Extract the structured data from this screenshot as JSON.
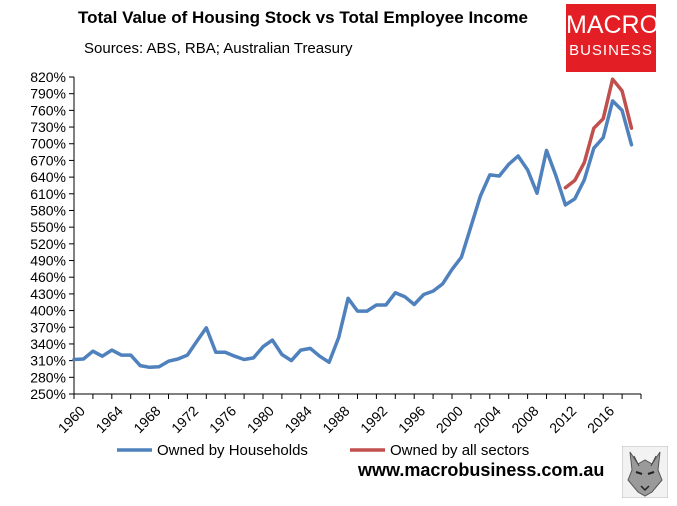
{
  "header": {
    "title": "Total Value of Housing Stock vs Total Employee Income",
    "subtitle": "Sources: ABS, RBA; Australian Treasury"
  },
  "logo": {
    "line1": "MACRO",
    "line2": "BUSINESS"
  },
  "footer": {
    "website": "www.macrobusiness.com.au"
  },
  "colors": {
    "households": "#4f81bd",
    "all_sectors": "#c0504d",
    "axis": "#000000",
    "grid": "#d9d9d9"
  },
  "chart_data": {
    "type": "line",
    "title": "Total Value of Housing Stock vs Total Employee Income",
    "subtitle": "Sources: ABS, RBA; Australian Treasury",
    "xlim": [
      1960,
      2020
    ],
    "ylim": [
      250,
      820
    ],
    "y_ticks": [
      "820%",
      "790%",
      "760%",
      "730%",
      "700%",
      "670%",
      "640%",
      "610%",
      "580%",
      "550%",
      "520%",
      "490%",
      "460%",
      "430%",
      "400%",
      "370%",
      "340%",
      "310%",
      "280%",
      "250%"
    ],
    "y_tick_values": [
      820,
      790,
      760,
      730,
      700,
      670,
      640,
      610,
      580,
      550,
      520,
      490,
      460,
      430,
      400,
      370,
      340,
      310,
      280,
      250
    ],
    "x_ticks": [
      "1960",
      "1964",
      "1968",
      "1972",
      "1976",
      "1980",
      "1984",
      "1988",
      "1992",
      "1996",
      "2000",
      "2004",
      "2008",
      "2012",
      "2016"
    ],
    "x_tick_values": [
      1960,
      1964,
      1968,
      1972,
      1976,
      1980,
      1984,
      1988,
      1992,
      1996,
      2000,
      2004,
      2008,
      2012,
      2016
    ],
    "y_unit": "%",
    "grid": false,
    "legend_position": "bottom",
    "series": [
      {
        "name": "Owned by Households",
        "color": "#4f81bd",
        "x": [
          1960,
          1961,
          1962,
          1963,
          1964,
          1965,
          1966,
          1967,
          1968,
          1969,
          1970,
          1971,
          1972,
          1973,
          1974,
          1975,
          1976,
          1977,
          1978,
          1979,
          1980,
          1981,
          1982,
          1983,
          1984,
          1985,
          1986,
          1987,
          1988,
          1989,
          1990,
          1991,
          1992,
          1993,
          1994,
          1995,
          1996,
          1997,
          1998,
          1999,
          2000,
          2001,
          2002,
          2003,
          2004,
          2005,
          2006,
          2007,
          2008,
          2009,
          2010,
          2011,
          2012,
          2013,
          2014,
          2015,
          2016,
          2017,
          2018,
          2019
        ],
        "y": [
          312,
          313,
          327,
          318,
          329,
          320,
          320,
          301,
          298,
          299,
          309,
          313,
          320,
          345,
          369,
          325,
          325,
          318,
          312,
          315,
          335,
          347,
          321,
          310,
          329,
          332,
          318,
          307,
          351,
          422,
          399,
          399,
          410,
          410,
          432,
          425,
          411,
          429,
          435,
          448,
          474,
          496,
          551,
          606,
          644,
          642,
          663,
          678,
          653,
          611,
          688,
          642,
          590,
          601,
          635,
          692,
          711,
          777,
          760,
          698
        ]
      },
      {
        "name": "Owned by all sectors",
        "color": "#c0504d",
        "x": [
          2012,
          2013,
          2014,
          2015,
          2016,
          2017,
          2018,
          2019
        ],
        "y": [
          621,
          634,
          666,
          728,
          745,
          816,
          795,
          728
        ]
      }
    ]
  }
}
